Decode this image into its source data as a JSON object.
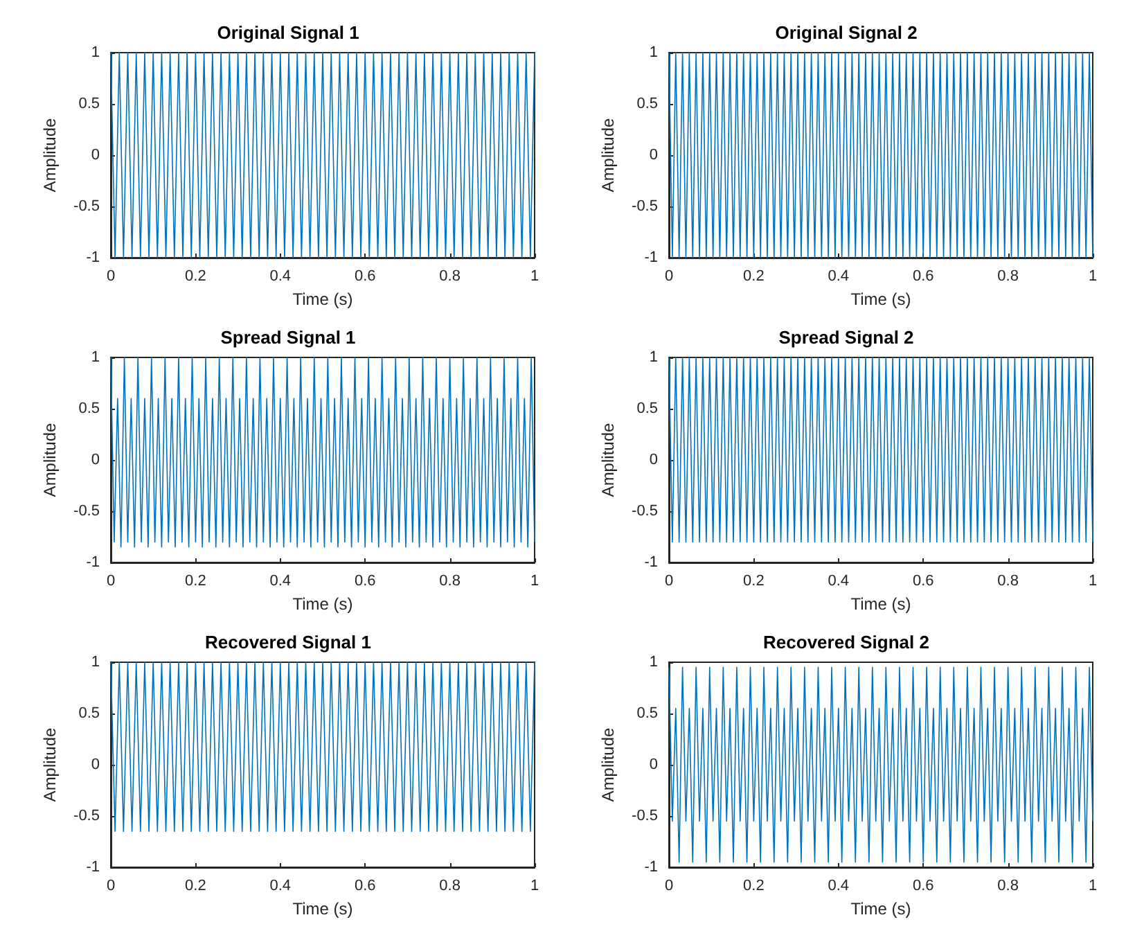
{
  "chart_data": [
    {
      "type": "line",
      "title": "Original Signal 1",
      "xlabel": "Time (s)",
      "ylabel": "Amplitude",
      "xlim": [
        0,
        1
      ],
      "ylim": [
        -1,
        1
      ],
      "xticks": [
        0,
        0.2,
        0.4,
        0.6,
        0.8,
        1
      ],
      "yticks": [
        -1,
        -0.5,
        0,
        0.5,
        1
      ],
      "x": [
        0,
        0.01,
        0.02,
        0.03,
        0.04,
        0.05,
        0.06,
        0.07,
        0.08,
        0.09,
        0.1,
        0.11,
        0.12,
        0.13,
        0.14,
        0.15,
        0.16,
        0.17,
        0.18,
        0.19,
        0.2,
        0.21,
        0.22,
        0.23,
        0.24,
        0.25,
        0.26,
        0.27,
        0.28,
        0.29,
        0.3,
        0.31,
        0.32,
        0.33,
        0.34,
        0.35,
        0.36,
        0.37,
        0.38,
        0.39,
        0.4,
        0.41,
        0.42,
        0.43,
        0.44,
        0.45,
        0.46,
        0.47,
        0.48,
        0.49,
        0.5,
        0.51,
        0.52,
        0.53,
        0.54,
        0.55,
        0.56,
        0.57,
        0.58,
        0.59,
        0.6,
        0.61,
        0.62,
        0.63,
        0.64,
        0.65,
        0.66,
        0.67,
        0.68,
        0.69,
        0.7,
        0.71,
        0.72,
        0.73,
        0.74,
        0.75,
        0.76,
        0.77,
        0.78,
        0.79,
        0.8,
        0.81,
        0.82,
        0.83,
        0.84,
        0.85,
        0.86,
        0.87,
        0.88,
        0.89,
        0.9,
        0.91,
        0.92,
        0.93,
        0.94,
        0.95,
        0.96,
        0.97,
        0.98,
        0.99,
        1
      ],
      "series": [
        {
          "color": "#0072bd",
          "values": [
            1,
            -1,
            1,
            -1,
            1,
            -1,
            1,
            -1,
            1,
            -1,
            1,
            -1,
            1,
            -1,
            1,
            -1,
            1,
            -1,
            1,
            -1,
            1,
            -1,
            1,
            -1,
            1,
            -1,
            1,
            -1,
            1,
            -1,
            1,
            -1,
            1,
            -1,
            1,
            -1,
            1,
            -1,
            1,
            -1,
            1,
            -1,
            1,
            -1,
            1,
            -1,
            1,
            -1,
            1,
            -1,
            1,
            -1,
            1,
            -1,
            1,
            -1,
            1,
            -1,
            1,
            -1,
            1,
            -1,
            1,
            -1,
            1,
            -1,
            1,
            -1,
            1,
            -1,
            1,
            -1,
            1,
            -1,
            1,
            -1,
            1,
            -1,
            1,
            -1,
            1,
            -1,
            1,
            -1,
            1,
            -1,
            1,
            -1,
            1,
            -1,
            1,
            -1,
            1,
            -1,
            1,
            -1,
            1,
            -1,
            1,
            -1,
            1
          ]
        }
      ]
    },
    {
      "type": "line",
      "title": "Original Signal 2",
      "xlabel": "Time (s)",
      "ylabel": "Amplitude",
      "xlim": [
        0,
        1
      ],
      "ylim": [
        -1,
        1
      ],
      "xticks": [
        0,
        0.2,
        0.4,
        0.6,
        0.8,
        1
      ],
      "yticks": [
        -1,
        -0.5,
        0,
        0.5,
        1
      ],
      "x": [
        0,
        0.008,
        0.016,
        0.024,
        0.032,
        0.04,
        0.048,
        0.056,
        0.064,
        0.072,
        0.08,
        0.088,
        0.096,
        0.104,
        0.112,
        0.12,
        0.128,
        0.136,
        0.144,
        0.152,
        0.16,
        0.168,
        0.176,
        0.184,
        0.192,
        0.2,
        0.208,
        0.216,
        0.224,
        0.232,
        0.24,
        0.248,
        0.256,
        0.264,
        0.272,
        0.28,
        0.288,
        0.296,
        0.304,
        0.312,
        0.32,
        0.328,
        0.336,
        0.344,
        0.352,
        0.36,
        0.368,
        0.376,
        0.384,
        0.392,
        0.4,
        0.408,
        0.416,
        0.424,
        0.432,
        0.44,
        0.448,
        0.456,
        0.464,
        0.472,
        0.48,
        0.488,
        0.496,
        0.504,
        0.512,
        0.52,
        0.528,
        0.536,
        0.544,
        0.552,
        0.56,
        0.568,
        0.576,
        0.584,
        0.592,
        0.6,
        0.608,
        0.616,
        0.624,
        0.632,
        0.64,
        0.648,
        0.656,
        0.664,
        0.672,
        0.68,
        0.688,
        0.696,
        0.704,
        0.712,
        0.72,
        0.728,
        0.736,
        0.744,
        0.752,
        0.76,
        0.768,
        0.776,
        0.784,
        0.792,
        0.8,
        0.808,
        0.816,
        0.824,
        0.832,
        0.84,
        0.848,
        0.856,
        0.864,
        0.872,
        0.88,
        0.888,
        0.896,
        0.904,
        0.912,
        0.92,
        0.928,
        0.936,
        0.944,
        0.952,
        0.96,
        0.968,
        0.976,
        0.984,
        0.992,
        1
      ],
      "series": [
        {
          "color": "#0072bd",
          "values": [
            1,
            -1,
            1,
            -1,
            1,
            -1,
            1,
            -1,
            1,
            -1,
            1,
            -1,
            1,
            -1,
            1,
            -1,
            1,
            -1,
            1,
            -1,
            1,
            -1,
            1,
            -1,
            1,
            -1,
            1,
            -1,
            1,
            -1,
            1,
            -1,
            1,
            -1,
            1,
            -1,
            1,
            -1,
            1,
            -1,
            1,
            -1,
            1,
            -1,
            1,
            -1,
            1,
            -1,
            1,
            -1,
            1,
            -1,
            1,
            -1,
            1,
            -1,
            1,
            -1,
            1,
            -1,
            1,
            -1,
            1,
            -1,
            1,
            -1,
            1,
            -1,
            1,
            -1,
            1,
            -1,
            1,
            -1,
            1,
            -1,
            1,
            -1,
            1,
            -1,
            1,
            -1,
            1,
            -1,
            1,
            -1,
            1,
            -1,
            1,
            -1,
            1,
            -1,
            1,
            -1,
            1,
            -1,
            1,
            -1,
            1,
            -1,
            1,
            -1,
            1,
            -1,
            1,
            -1,
            1,
            -1,
            1,
            -1,
            1,
            -1,
            1,
            -1,
            1,
            -1,
            1,
            -1,
            1,
            -1,
            1,
            -1,
            1,
            -1,
            1,
            -1
          ]
        }
      ]
    },
    {
      "type": "line",
      "title": "Spread Signal 1",
      "xlabel": "Time (s)",
      "ylabel": "Amplitude",
      "xlim": [
        0,
        1
      ],
      "ylim": [
        -1,
        1
      ],
      "xticks": [
        0,
        0.2,
        0.4,
        0.6,
        0.8,
        1
      ],
      "yticks": [
        -1,
        -0.5,
        0,
        0.5,
        1
      ],
      "x": [
        0,
        0.008,
        0.016,
        0.024,
        0.032,
        0.04,
        0.048,
        0.056,
        0.064,
        0.072,
        0.08,
        0.088,
        0.096,
        0.104,
        0.112,
        0.12,
        0.128,
        0.136,
        0.144,
        0.152,
        0.16,
        0.168,
        0.176,
        0.184,
        0.192,
        0.2,
        0.208,
        0.216,
        0.224,
        0.232,
        0.24,
        0.248,
        0.256,
        0.264,
        0.272,
        0.28,
        0.288,
        0.296,
        0.304,
        0.312,
        0.32,
        0.328,
        0.336,
        0.344,
        0.352,
        0.36,
        0.368,
        0.376,
        0.384,
        0.392,
        0.4,
        0.408,
        0.416,
        0.424,
        0.432,
        0.44,
        0.448,
        0.456,
        0.464,
        0.472,
        0.48,
        0.488,
        0.496,
        0.504,
        0.512,
        0.52,
        0.528,
        0.536,
        0.544,
        0.552,
        0.56,
        0.568,
        0.576,
        0.584,
        0.592,
        0.6,
        0.608,
        0.616,
        0.624,
        0.632,
        0.64,
        0.648,
        0.656,
        0.664,
        0.672,
        0.68,
        0.688,
        0.696,
        0.704,
        0.712,
        0.72,
        0.728,
        0.736,
        0.744,
        0.752,
        0.76,
        0.768,
        0.776,
        0.784,
        0.792,
        0.8,
        0.808,
        0.816,
        0.824,
        0.832,
        0.84,
        0.848,
        0.856,
        0.864,
        0.872,
        0.88,
        0.888,
        0.896,
        0.904,
        0.912,
        0.92,
        0.928,
        0.936,
        0.944,
        0.952,
        0.96,
        0.968,
        0.976,
        0.984,
        0.992,
        1
      ],
      "series": [
        {
          "color": "#0072bd",
          "values": [
            1,
            -0.8,
            0.6,
            -0.85,
            1,
            -0.8,
            0.6,
            -0.85,
            1,
            -0.8,
            0.6,
            -0.85,
            1,
            -0.8,
            0.6,
            -0.85,
            1,
            -0.8,
            0.6,
            -0.85,
            1,
            -0.8,
            0.6,
            -0.85,
            1,
            -0.8,
            0.6,
            -0.85,
            1,
            -0.8,
            0.6,
            -0.85,
            1,
            -0.8,
            0.6,
            -0.85,
            1,
            -0.8,
            0.6,
            -0.85,
            1,
            -0.8,
            0.6,
            -0.85,
            1,
            -0.8,
            0.6,
            -0.85,
            1,
            -0.8,
            0.6,
            -0.85,
            1,
            -0.8,
            0.6,
            -0.85,
            1,
            -0.8,
            0.6,
            -0.85,
            1,
            -0.8,
            0.6,
            -0.85,
            1,
            -0.8,
            0.6,
            -0.85,
            1,
            -0.8,
            0.6,
            -0.85,
            1,
            -0.8,
            0.6,
            -0.85,
            1,
            -0.8,
            0.6,
            -0.85,
            1,
            -0.8,
            0.6,
            -0.85,
            1,
            -0.8,
            0.6,
            -0.85,
            1,
            -0.8,
            0.6,
            -0.85,
            1,
            -0.8,
            0.6,
            -0.85,
            1,
            -0.8,
            0.6,
            -0.85,
            1,
            -0.8,
            0.6,
            -0.85,
            1,
            -0.8,
            0.6,
            -0.85,
            1,
            -0.8,
            0.6,
            -0.85,
            1,
            -0.8,
            0.6,
            -0.85,
            1,
            -0.8,
            0.6,
            -0.85,
            1,
            -0.8,
            0.6,
            -0.85,
            1,
            -0.8
          ]
        }
      ]
    },
    {
      "type": "line",
      "title": "Spread Signal 2",
      "xlabel": "Time (s)",
      "ylabel": "Amplitude",
      "xlim": [
        0,
        1
      ],
      "ylim": [
        -1,
        1
      ],
      "xticks": [
        0,
        0.2,
        0.4,
        0.6,
        0.8,
        1
      ],
      "yticks": [
        -1,
        -0.5,
        0,
        0.5,
        1
      ],
      "x": [
        0,
        0.008,
        0.016,
        0.024,
        0.032,
        0.04,
        0.048,
        0.056,
        0.064,
        0.072,
        0.08,
        0.088,
        0.096,
        0.104,
        0.112,
        0.12,
        0.128,
        0.136,
        0.144,
        0.152,
        0.16,
        0.168,
        0.176,
        0.184,
        0.192,
        0.2,
        0.208,
        0.216,
        0.224,
        0.232,
        0.24,
        0.248,
        0.256,
        0.264,
        0.272,
        0.28,
        0.288,
        0.296,
        0.304,
        0.312,
        0.32,
        0.328,
        0.336,
        0.344,
        0.352,
        0.36,
        0.368,
        0.376,
        0.384,
        0.392,
        0.4,
        0.408,
        0.416,
        0.424,
        0.432,
        0.44,
        0.448,
        0.456,
        0.464,
        0.472,
        0.48,
        0.488,
        0.496,
        0.504,
        0.512,
        0.52,
        0.528,
        0.536,
        0.544,
        0.552,
        0.56,
        0.568,
        0.576,
        0.584,
        0.592,
        0.6,
        0.608,
        0.616,
        0.624,
        0.632,
        0.64,
        0.648,
        0.656,
        0.664,
        0.672,
        0.68,
        0.688,
        0.696,
        0.704,
        0.712,
        0.72,
        0.728,
        0.736,
        0.744,
        0.752,
        0.76,
        0.768,
        0.776,
        0.784,
        0.792,
        0.8,
        0.808,
        0.816,
        0.824,
        0.832,
        0.84,
        0.848,
        0.856,
        0.864,
        0.872,
        0.88,
        0.888,
        0.896,
        0.904,
        0.912,
        0.92,
        0.928,
        0.936,
        0.944,
        0.952,
        0.96,
        0.968,
        0.976,
        0.984,
        0.992,
        1
      ],
      "series": [
        {
          "color": "#0072bd",
          "values": [
            1,
            -0.8,
            1,
            -0.8,
            1,
            -0.8,
            1,
            -0.8,
            1,
            -0.8,
            1,
            -0.8,
            1,
            -0.8,
            1,
            -0.8,
            1,
            -0.8,
            1,
            -0.8,
            1,
            -0.8,
            1,
            -0.8,
            1,
            -0.8,
            1,
            -0.8,
            1,
            -0.8,
            1,
            -0.8,
            1,
            -0.8,
            1,
            -0.8,
            1,
            -0.8,
            1,
            -0.8,
            1,
            -0.8,
            1,
            -0.8,
            1,
            -0.8,
            1,
            -0.8,
            1,
            -0.8,
            1,
            -0.8,
            1,
            -0.8,
            1,
            -0.8,
            1,
            -0.8,
            1,
            -0.8,
            1,
            -0.8,
            1,
            -0.8,
            1,
            -0.8,
            1,
            -0.8,
            1,
            -0.8,
            1,
            -0.8,
            1,
            -0.8,
            1,
            -0.8,
            1,
            -0.8,
            1,
            -0.8,
            1,
            -0.8,
            1,
            -0.8,
            1,
            -0.8,
            1,
            -0.8,
            1,
            -0.8,
            1,
            -0.8,
            1,
            -0.8,
            1,
            -0.8,
            1,
            -0.8,
            1,
            -0.8,
            1,
            -0.8,
            1,
            -0.8,
            1,
            -0.8,
            1,
            -0.8,
            1,
            -0.8,
            1,
            -0.8,
            1,
            -0.8,
            1,
            -0.8,
            1,
            -0.8,
            1,
            -0.8,
            1,
            -0.8,
            1,
            -0.8,
            1,
            -0.8
          ]
        }
      ]
    },
    {
      "type": "line",
      "title": "Recovered Signal 1",
      "xlabel": "Time (s)",
      "ylabel": "Amplitude",
      "xlim": [
        0,
        1
      ],
      "ylim": [
        -1,
        1
      ],
      "xticks": [
        0,
        0.2,
        0.4,
        0.6,
        0.8,
        1
      ],
      "yticks": [
        -1,
        -0.5,
        0,
        0.5,
        1
      ],
      "x": [
        0,
        0.01,
        0.02,
        0.03,
        0.04,
        0.05,
        0.06,
        0.07,
        0.08,
        0.09,
        0.1,
        0.11,
        0.12,
        0.13,
        0.14,
        0.15,
        0.16,
        0.17,
        0.18,
        0.19,
        0.2,
        0.21,
        0.22,
        0.23,
        0.24,
        0.25,
        0.26,
        0.27,
        0.28,
        0.29,
        0.3,
        0.31,
        0.32,
        0.33,
        0.34,
        0.35,
        0.36,
        0.37,
        0.38,
        0.39,
        0.4,
        0.41,
        0.42,
        0.43,
        0.44,
        0.45,
        0.46,
        0.47,
        0.48,
        0.49,
        0.5,
        0.51,
        0.52,
        0.53,
        0.54,
        0.55,
        0.56,
        0.57,
        0.58,
        0.59,
        0.6,
        0.61,
        0.62,
        0.63,
        0.64,
        0.65,
        0.66,
        0.67,
        0.68,
        0.69,
        0.7,
        0.71,
        0.72,
        0.73,
        0.74,
        0.75,
        0.76,
        0.77,
        0.78,
        0.79,
        0.8,
        0.81,
        0.82,
        0.83,
        0.84,
        0.85,
        0.86,
        0.87,
        0.88,
        0.89,
        0.9,
        0.91,
        0.92,
        0.93,
        0.94,
        0.95,
        0.96,
        0.97,
        0.98,
        0.99,
        1
      ],
      "series": [
        {
          "color": "#0072bd",
          "values": [
            1,
            -0.65,
            1,
            -0.65,
            1,
            -0.65,
            1,
            -0.65,
            1,
            -0.65,
            1,
            -0.65,
            1,
            -0.65,
            1,
            -0.65,
            1,
            -0.65,
            1,
            -0.65,
            1,
            -0.65,
            1,
            -0.65,
            1,
            -0.65,
            1,
            -0.65,
            1,
            -0.65,
            1,
            -0.65,
            1,
            -0.65,
            1,
            -0.65,
            1,
            -0.65,
            1,
            -0.65,
            1,
            -0.65,
            1,
            -0.65,
            1,
            -0.65,
            1,
            -0.65,
            1,
            -0.65,
            1,
            -0.65,
            1,
            -0.65,
            1,
            -0.65,
            1,
            -0.65,
            1,
            -0.65,
            1,
            -0.65,
            1,
            -0.65,
            1,
            -0.65,
            1,
            -0.65,
            1,
            -0.65,
            1,
            -0.65,
            1,
            -0.65,
            1,
            -0.65,
            1,
            -0.65,
            1,
            -0.65,
            1,
            -0.65,
            1,
            -0.65,
            1,
            -0.65,
            1,
            -0.65,
            1,
            -0.65,
            1,
            -0.65,
            1,
            -0.65,
            1,
            -0.65,
            1,
            -0.65,
            1,
            -0.65,
            1
          ]
        }
      ]
    },
    {
      "type": "line",
      "title": "Recovered Signal 2",
      "xlabel": "Time (s)",
      "ylabel": "Amplitude",
      "xlim": [
        0,
        1
      ],
      "ylim": [
        -1,
        1
      ],
      "xticks": [
        0,
        0.2,
        0.4,
        0.6,
        0.8,
        1
      ],
      "yticks": [
        -1,
        -0.5,
        0,
        0.5,
        1
      ],
      "x": [
        0,
        0.008,
        0.016,
        0.024,
        0.032,
        0.04,
        0.048,
        0.056,
        0.064,
        0.072,
        0.08,
        0.088,
        0.096,
        0.104,
        0.112,
        0.12,
        0.128,
        0.136,
        0.144,
        0.152,
        0.16,
        0.168,
        0.176,
        0.184,
        0.192,
        0.2,
        0.208,
        0.216,
        0.224,
        0.232,
        0.24,
        0.248,
        0.256,
        0.264,
        0.272,
        0.28,
        0.288,
        0.296,
        0.304,
        0.312,
        0.32,
        0.328,
        0.336,
        0.344,
        0.352,
        0.36,
        0.368,
        0.376,
        0.384,
        0.392,
        0.4,
        0.408,
        0.416,
        0.424,
        0.432,
        0.44,
        0.448,
        0.456,
        0.464,
        0.472,
        0.48,
        0.488,
        0.496,
        0.504,
        0.512,
        0.52,
        0.528,
        0.536,
        0.544,
        0.552,
        0.56,
        0.568,
        0.576,
        0.584,
        0.592,
        0.6,
        0.608,
        0.616,
        0.624,
        0.632,
        0.64,
        0.648,
        0.656,
        0.664,
        0.672,
        0.68,
        0.688,
        0.696,
        0.704,
        0.712,
        0.72,
        0.728,
        0.736,
        0.744,
        0.752,
        0.76,
        0.768,
        0.776,
        0.784,
        0.792,
        0.8,
        0.808,
        0.816,
        0.824,
        0.832,
        0.84,
        0.848,
        0.856,
        0.864,
        0.872,
        0.88,
        0.888,
        0.896,
        0.904,
        0.912,
        0.92,
        0.928,
        0.936,
        0.944,
        0.952,
        0.96,
        0.968,
        0.976,
        0.984,
        0.992,
        1
      ],
      "series": [
        {
          "color": "#0072bd",
          "values": [
            0.95,
            -0.55,
            0.55,
            -0.95,
            0.95,
            -0.55,
            0.55,
            -0.95,
            0.95,
            -0.55,
            0.55,
            -0.95,
            0.95,
            -0.55,
            0.55,
            -0.95,
            0.95,
            -0.55,
            0.55,
            -0.95,
            0.95,
            -0.55,
            0.55,
            -0.95,
            0.95,
            -0.55,
            0.55,
            -0.95,
            0.95,
            -0.55,
            0.55,
            -0.95,
            0.95,
            -0.55,
            0.55,
            -0.95,
            0.95,
            -0.55,
            0.55,
            -0.95,
            0.95,
            -0.55,
            0.55,
            -0.95,
            0.95,
            -0.55,
            0.55,
            -0.95,
            0.95,
            -0.55,
            0.55,
            -0.95,
            0.95,
            -0.55,
            0.55,
            -0.95,
            0.95,
            -0.55,
            0.55,
            -0.95,
            0.95,
            -0.55,
            0.55,
            -0.95,
            0.95,
            -0.55,
            0.55,
            -0.95,
            0.95,
            -0.55,
            0.55,
            -0.95,
            0.95,
            -0.55,
            0.55,
            -0.95,
            0.95,
            -0.55,
            0.55,
            -0.95,
            0.95,
            -0.55,
            0.55,
            -0.95,
            0.95,
            -0.55,
            0.55,
            -0.95,
            0.95,
            -0.55,
            0.55,
            -0.95,
            0.95,
            -0.55,
            0.55,
            -0.95,
            0.95,
            -0.55,
            0.55,
            -0.95,
            0.95,
            -0.55,
            0.55,
            -0.95,
            0.95,
            -0.55,
            0.55,
            -0.95,
            0.95,
            -0.55,
            0.55,
            -0.95,
            0.95,
            -0.55,
            0.55,
            -0.95,
            0.95,
            -0.55,
            0.55,
            -0.95,
            0.95,
            -0.55,
            0.55,
            -0.95,
            0.95,
            -0.55
          ]
        }
      ]
    }
  ]
}
